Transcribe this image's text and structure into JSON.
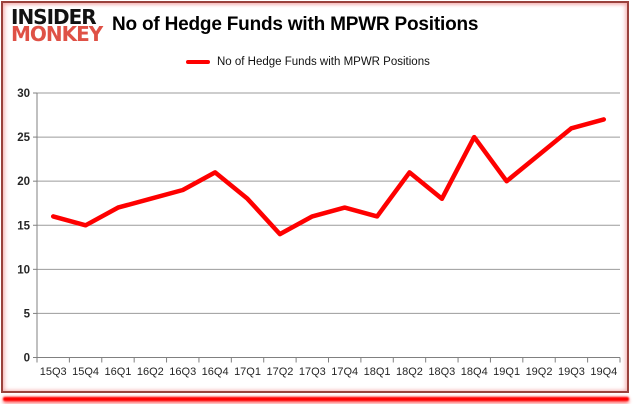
{
  "logo": {
    "line1": "INSIDER",
    "line2": "MONKEY"
  },
  "header": {
    "title": "No of Hedge Funds with MPWR Positions"
  },
  "legend": {
    "label": "No of Hedge Funds with MPWR Positions",
    "swatch_color": "#fe0000"
  },
  "colors": {
    "series_line": "#fe0000",
    "gridline": "#9b9b9b",
    "axis": "#808080",
    "axis_text": "#262626",
    "logo_red": "#df5146",
    "frame_border": "#9a423c",
    "bottom_glow": "#fe0000"
  },
  "chart_data": {
    "type": "line",
    "title": "No of Hedge Funds with MPWR Positions",
    "categories": [
      "15Q3",
      "15Q4",
      "16Q1",
      "16Q2",
      "16Q3",
      "16Q4",
      "17Q1",
      "17Q2",
      "17Q3",
      "17Q4",
      "18Q1",
      "18Q2",
      "18Q3",
      "18Q4",
      "19Q1",
      "19Q2",
      "19Q3",
      "19Q4"
    ],
    "series": [
      {
        "name": "No of Hedge Funds with MPWR Positions",
        "color": "#fe0000",
        "values": [
          16,
          15,
          17,
          18,
          19,
          21,
          18,
          14,
          16,
          17,
          16,
          21,
          18,
          25,
          20,
          23,
          26,
          27
        ]
      }
    ],
    "xlabel": "",
    "ylabel": "",
    "ylim": [
      0,
      30
    ],
    "ytick_interval": 5,
    "grid": true,
    "legend_position": "top-center"
  }
}
